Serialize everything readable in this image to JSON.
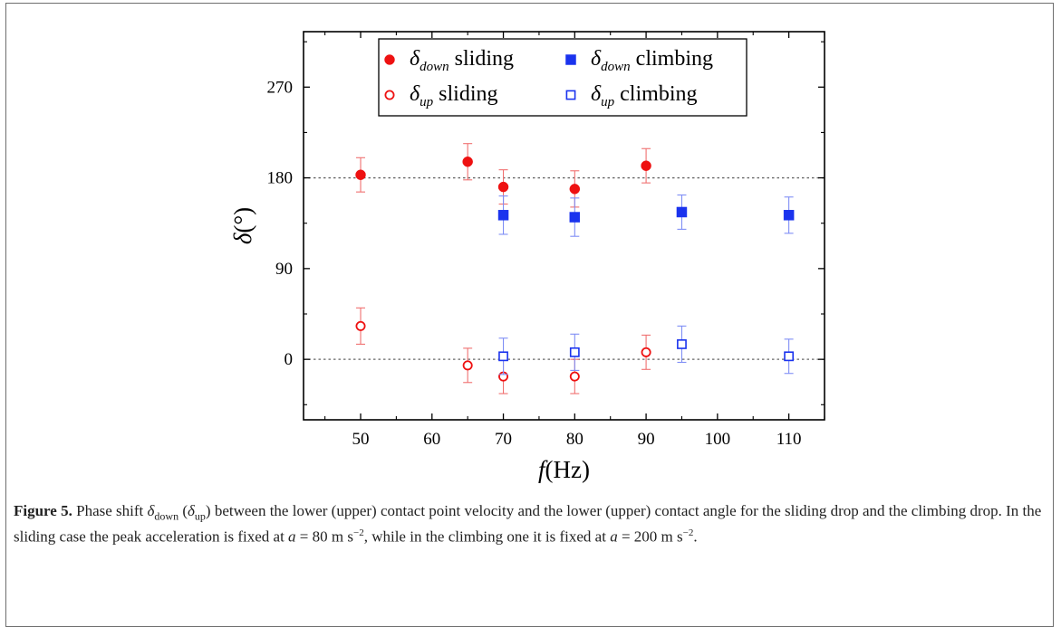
{
  "chart_data": {
    "type": "scatter",
    "xlabel": "f",
    "xlabel_unit": "(Hz)",
    "ylabel": "δ",
    "ylabel_unit": "(°)",
    "xlim": [
      42,
      115
    ],
    "ylim": [
      -60,
      325
    ],
    "xticks": [
      50,
      60,
      70,
      80,
      90,
      100,
      110
    ],
    "yticks": [
      0,
      90,
      180,
      270
    ],
    "reference_lines": [
      0,
      180
    ],
    "legend_position": "top-center",
    "series": [
      {
        "name": "δ_down sliding",
        "sym": "δ",
        "sub": "down",
        "word": "sliding",
        "marker": "circle",
        "filled": true,
        "color": "#ee1111",
        "errcolor": "#f07070",
        "points": [
          {
            "x": 50,
            "y": 183,
            "err": 17
          },
          {
            "x": 65,
            "y": 196,
            "err": 18
          },
          {
            "x": 70,
            "y": 171,
            "err": 17
          },
          {
            "x": 80,
            "y": 169,
            "err": 18
          },
          {
            "x": 90,
            "y": 192,
            "err": 17
          }
        ]
      },
      {
        "name": "δ_up sliding",
        "sym": "δ",
        "sub": "up",
        "word": "sliding",
        "marker": "circle",
        "filled": false,
        "color": "#ee1111",
        "errcolor": "#f07070",
        "points": [
          {
            "x": 50,
            "y": 33,
            "err": 18
          },
          {
            "x": 65,
            "y": -6,
            "err": 17
          },
          {
            "x": 70,
            "y": -17,
            "err": 17
          },
          {
            "x": 80,
            "y": -17,
            "err": 17
          },
          {
            "x": 90,
            "y": 7,
            "err": 17
          }
        ]
      },
      {
        "name": "δ_down climbing",
        "sym": "δ",
        "sub": "down",
        "word": "climbing",
        "marker": "square",
        "filled": true,
        "color": "#1a33ee",
        "errcolor": "#7f8ef5",
        "points": [
          {
            "x": 70,
            "y": 143,
            "err": 19
          },
          {
            "x": 80,
            "y": 141,
            "err": 19
          },
          {
            "x": 95,
            "y": 146,
            "err": 17
          },
          {
            "x": 110,
            "y": 143,
            "err": 18
          }
        ]
      },
      {
        "name": "δ_up climbing",
        "sym": "δ",
        "sub": "up",
        "word": "climbing",
        "marker": "square",
        "filled": false,
        "color": "#1a33ee",
        "errcolor": "#7f8ef5",
        "points": [
          {
            "x": 70,
            "y": 3,
            "err": 18
          },
          {
            "x": 80,
            "y": 7,
            "err": 18
          },
          {
            "x": 95,
            "y": 15,
            "err": 18
          },
          {
            "x": 110,
            "y": 3,
            "err": 17
          }
        ]
      }
    ]
  },
  "caption": {
    "label": "Figure 5.",
    "t1": " Phase shift ",
    "sym": "δ",
    "sub_down": "down",
    "t2": " (",
    "sub_up": "up",
    "t3": ") between the lower (upper) contact point velocity and the lower (upper) contact angle for the sliding drop and the climbing drop. In the sliding case the peak acceleration is fixed at ",
    "a1": "a",
    "v1": " = 80 m s",
    "exp": "−2",
    "t4": ", while in the climbing one it is fixed at ",
    "a2": "a",
    "v2": " = 200 m s",
    "end": "."
  }
}
